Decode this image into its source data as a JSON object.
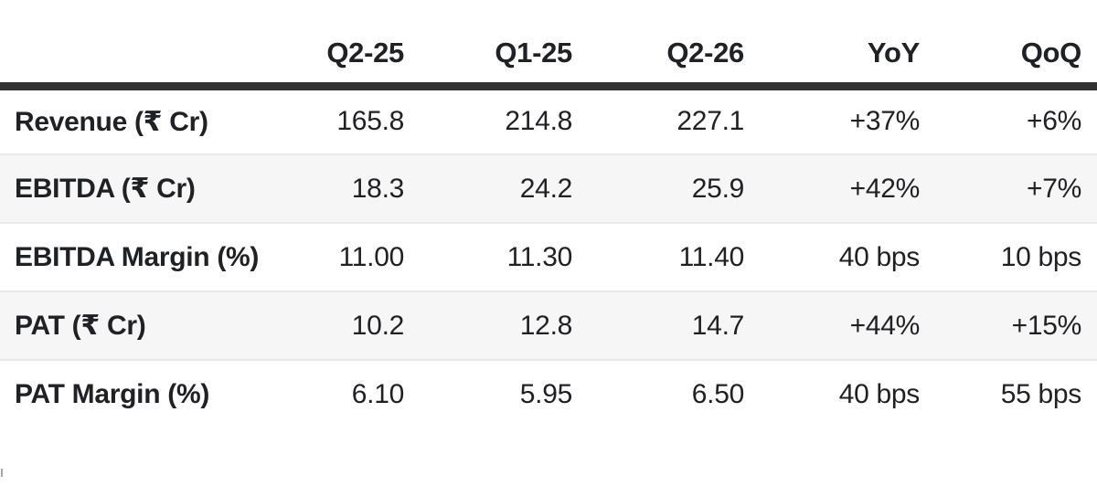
{
  "chart_data": {
    "type": "table",
    "title": "",
    "columns": [
      "",
      "Q2-25",
      "Q1-25",
      "Q2-26",
      "YoY",
      "QoQ"
    ],
    "rows": [
      {
        "label": "Revenue (₹ Cr)",
        "values": [
          "165.8",
          "214.8",
          "227.1",
          "+37%",
          "+6%"
        ]
      },
      {
        "label": "EBITDA (₹ Cr)",
        "values": [
          "18.3",
          "24.2",
          "25.9",
          "+42%",
          "+7%"
        ]
      },
      {
        "label": "EBITDA Margin (%)",
        "values": [
          "11.00",
          "11.30",
          "11.40",
          "40 bps",
          "10 bps"
        ]
      },
      {
        "label": "PAT (₹ Cr)",
        "values": [
          "10.2",
          "12.8",
          "14.7",
          "+44%",
          "+15%"
        ]
      },
      {
        "label": "PAT Margin (%)",
        "values": [
          "6.10",
          "5.95",
          "6.50",
          "40 bps",
          "55 bps"
        ]
      }
    ],
    "layout_hints": {
      "value_alignment": "right",
      "alternating_row_shading": true,
      "heavy_rule_below_header": true
    }
  },
  "colors": {
    "text": "#202124",
    "header_rule": "#323232",
    "alt_row_background": "#f6f6f6",
    "row_separator": "#e9e9e9",
    "background": "#ffffff",
    "stray_tick": "#a6a6a6"
  }
}
